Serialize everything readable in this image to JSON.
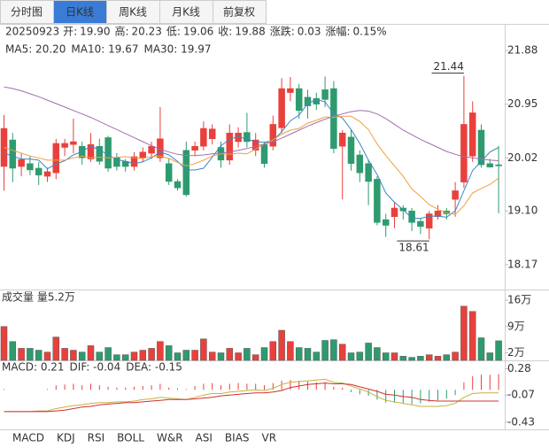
{
  "tabs": [
    "分时图",
    "日K线",
    "周K线",
    "月K线",
    "前复权"
  ],
  "active_tab": 1,
  "info": {
    "date": "20250923",
    "fields": [
      {
        "name": "开:",
        "value": 19.9,
        "label": "19.90",
        "color": "#e8413c"
      },
      {
        "name": "高:",
        "value": 20.23,
        "label": "20.23",
        "color": "#e8413c"
      },
      {
        "name": "低:",
        "value": 19.06,
        "label": "19.06",
        "color": "#2e9b6e"
      },
      {
        "name": "收:",
        "value": 19.88,
        "label": "19.88",
        "color": "#e8413c"
      },
      {
        "name": "涨跌:",
        "value": 0.03,
        "label": "0.03",
        "color": "#e8413c"
      },
      {
        "name": "涨幅:",
        "value": 0.15,
        "label": "0.15%",
        "color": "#e8413c"
      }
    ]
  },
  "chart_data": [
    {
      "type": "candlestick",
      "up_color": "#e8413c",
      "down_color": "#2e9b6e",
      "ylim": [
        18.03,
        22.11
      ],
      "yticks": [
        21.88,
        20.95,
        20.02,
        {
          "value": 19.1,
          "label": "19.10"
        },
        18.17
      ],
      "ohlc": [
        [
          19.87,
          20.76,
          19.45,
          20.53
        ],
        [
          20.33,
          20.45,
          19.6,
          19.84
        ],
        [
          19.87,
          20.1,
          19.7,
          19.99
        ],
        [
          19.92,
          20.05,
          19.72,
          19.81
        ],
        [
          19.84,
          19.95,
          19.55,
          19.72
        ],
        [
          19.7,
          19.85,
          19.6,
          19.78
        ],
        [
          19.76,
          20.35,
          19.65,
          20.27
        ],
        [
          20.2,
          20.35,
          20.05,
          20.27
        ],
        [
          20.25,
          20.7,
          20.1,
          20.3
        ],
        [
          20.22,
          20.3,
          19.9,
          20.02
        ],
        [
          20.0,
          20.45,
          19.95,
          20.25
        ],
        [
          20.22,
          20.35,
          19.9,
          19.96
        ],
        [
          20.37,
          20.4,
          19.78,
          19.84
        ],
        [
          20.02,
          20.1,
          19.8,
          19.87
        ],
        [
          19.96,
          20.0,
          19.78,
          19.87
        ],
        [
          19.87,
          20.12,
          19.8,
          20.04
        ],
        [
          20.02,
          20.2,
          19.95,
          20.12
        ],
        [
          20.1,
          20.3,
          20.0,
          20.22
        ],
        [
          20.02,
          20.9,
          19.95,
          20.35
        ],
        [
          19.92,
          20.0,
          19.55,
          19.61
        ],
        [
          19.61,
          19.65,
          19.45,
          19.5
        ],
        [
          20.15,
          20.3,
          19.35,
          19.38
        ],
        [
          20.15,
          20.3,
          20.05,
          20.22
        ],
        [
          20.22,
          20.65,
          20.15,
          20.53
        ],
        [
          20.35,
          20.6,
          20.25,
          20.52
        ],
        [
          20.2,
          20.3,
          19.85,
          19.98
        ],
        [
          19.98,
          20.6,
          19.9,
          20.45
        ],
        [
          20.3,
          20.55,
          20.2,
          20.45
        ],
        [
          20.46,
          20.8,
          20.2,
          20.3
        ],
        [
          20.15,
          20.45,
          20.05,
          20.33
        ],
        [
          20.25,
          20.3,
          19.85,
          19.92
        ],
        [
          20.22,
          20.75,
          20.15,
          20.6
        ],
        [
          20.54,
          21.4,
          20.45,
          21.22
        ],
        [
          21.15,
          21.42,
          21.0,
          21.22
        ],
        [
          21.22,
          21.3,
          20.7,
          20.84
        ],
        [
          21.07,
          21.2,
          20.7,
          20.92
        ],
        [
          21.05,
          21.15,
          20.85,
          20.95
        ],
        [
          21.2,
          21.43,
          20.9,
          21.03
        ],
        [
          21.22,
          21.35,
          20.1,
          20.18
        ],
        [
          20.22,
          20.5,
          19.3,
          20.45
        ],
        [
          20.38,
          20.5,
          19.8,
          19.92
        ],
        [
          20.07,
          20.15,
          19.6,
          19.76
        ],
        [
          19.92,
          19.98,
          19.2,
          19.61
        ],
        [
          19.65,
          19.7,
          18.85,
          18.9
        ],
        [
          18.95,
          19.05,
          18.65,
          18.85
        ],
        [
          19.0,
          19.25,
          18.8,
          19.15
        ],
        [
          19.15,
          19.2,
          18.95,
          19.1
        ],
        [
          19.1,
          19.15,
          18.75,
          18.9
        ],
        [
          18.92,
          18.98,
          18.7,
          18.83
        ],
        [
          18.8,
          19.1,
          18.61,
          19.05
        ],
        [
          19.0,
          19.2,
          18.95,
          19.1
        ],
        [
          19.1,
          19.15,
          18.95,
          19.05
        ],
        [
          19.3,
          19.6,
          19.0,
          19.45
        ],
        [
          19.6,
          21.44,
          19.5,
          20.6
        ],
        [
          20.05,
          21.0,
          19.95,
          20.8
        ],
        [
          20.5,
          20.6,
          19.85,
          19.9
        ],
        [
          19.92,
          20.0,
          19.85,
          19.86
        ],
        [
          19.9,
          20.23,
          19.06,
          19.88
        ]
      ],
      "series": [
        {
          "name": "MA5: 20.20",
          "color": "#3b86c4",
          "values": [
            20.1,
            20.05,
            20.0,
            20.0,
            19.98,
            19.83,
            19.91,
            19.97,
            20.07,
            20.13,
            20.22,
            20.16,
            20.07,
            19.99,
            19.96,
            19.92,
            19.95,
            20.02,
            20.12,
            20.07,
            19.96,
            19.81,
            19.81,
            19.84,
            20.03,
            20.23,
            20.34,
            20.39,
            20.34,
            20.3,
            20.29,
            20.32,
            20.47,
            20.66,
            20.76,
            20.96,
            21.03,
            20.99,
            20.78,
            20.71,
            20.51,
            20.27,
            19.98,
            19.73,
            19.41,
            19.25,
            19.12,
            18.98,
            18.97,
            19.01,
            19.01,
            18.99,
            19.1,
            19.45,
            19.8,
            19.96,
            20.12,
            20.2
          ]
        },
        {
          "name": "MA10: 19.67",
          "color": "#f0a040",
          "values": [
            20.2,
            20.15,
            20.1,
            20.05,
            20.02,
            19.98,
            19.98,
            19.98,
            20.02,
            20.05,
            20.02,
            20.03,
            20.02,
            20.03,
            20.04,
            20.02,
            20.01,
            20.04,
            20.05,
            20.01,
            19.94,
            19.88,
            19.92,
            19.98,
            20.05,
            20.09,
            20.08,
            20.1,
            20.09,
            20.17,
            20.26,
            20.33,
            20.43,
            20.5,
            20.53,
            20.62,
            20.67,
            20.73,
            20.72,
            20.74,
            20.74,
            20.65,
            20.51,
            20.26,
            20.06,
            19.88,
            19.7,
            19.48,
            19.35,
            19.21,
            19.13,
            19.07,
            19.04,
            19.19,
            19.41,
            19.49,
            19.56,
            19.67
          ]
        },
        {
          "name": "MA30: 19.97",
          "color": "#a070b0",
          "values": [
            21.25,
            21.22,
            21.18,
            21.13,
            21.08,
            21.02,
            20.96,
            20.9,
            20.84,
            20.78,
            20.72,
            20.65,
            20.58,
            20.51,
            20.44,
            20.37,
            20.3,
            20.23,
            20.17,
            20.12,
            20.08,
            20.06,
            20.06,
            20.07,
            20.09,
            20.1,
            20.12,
            20.15,
            20.18,
            20.22,
            20.26,
            20.3,
            20.36,
            20.43,
            20.5,
            20.57,
            20.63,
            20.69,
            20.74,
            20.78,
            20.82,
            20.84,
            20.83,
            20.78,
            20.7,
            20.6,
            20.5,
            20.42,
            20.34,
            20.27,
            20.2,
            20.13,
            20.08,
            20.04,
            20.02,
            20.0,
            19.98,
            19.97
          ]
        }
      ]
    },
    {
      "type": "bar",
      "title": "成交量 量5.2万",
      "ylim": [
        0,
        18.6
      ],
      "yticks": [
        {
          "value": 16,
          "label": "16万"
        },
        {
          "value": 9,
          "label": "9万"
        },
        {
          "value": 2,
          "label": "2万"
        }
      ],
      "values": [
        9,
        5,
        3.2,
        3.2,
        2.7,
        2.2,
        6.2,
        3.2,
        2.7,
        2.2,
        3.9,
        2.2,
        3.4,
        1.5,
        1.5,
        2.2,
        2.7,
        3.2,
        5,
        3.9,
        2,
        2.7,
        2.7,
        5.7,
        2.2,
        2,
        3.2,
        2,
        3.2,
        1.5,
        3.4,
        5,
        8,
        5,
        3.4,
        3.2,
        2.2,
        5.3,
        5.5,
        4.3,
        2,
        2.2,
        4.6,
        3.4,
        2,
        2,
        1.1,
        0.8,
        1.1,
        1.5,
        1.1,
        1.5,
        2.2,
        14.4,
        13,
        6,
        2,
        5.2
      ]
    },
    {
      "type": "macd",
      "title": "MACD: 0.21",
      "up_color": "#e8413c",
      "down_color": "#2e9b6e",
      "ylim": [
        -0.55,
        0.38
      ],
      "yticks": [
        0.28,
        -0.07,
        -0.43
      ],
      "histogram": [
        0.01,
        0,
        0,
        0,
        0,
        0.01,
        0.06,
        0.07,
        0.08,
        0.06,
        0.08,
        0.06,
        0.04,
        0.03,
        0.03,
        0.04,
        0.05,
        0.06,
        0.08,
        0.03,
        0.02,
        0.01,
        0.05,
        0.08,
        0.09,
        0.06,
        0.08,
        0.09,
        0.08,
        0.08,
        0.06,
        0.09,
        0.12,
        0.13,
        0.12,
        0.11,
        0.1,
        0.1,
        0.04,
        0.03,
        -0.03,
        -0.06,
        -0.08,
        -0.13,
        -0.17,
        -0.17,
        -0.18,
        -0.19,
        -0.18,
        -0.16,
        -0.14,
        -0.12,
        -0.07,
        0.1,
        0.18,
        0.2,
        0.2,
        0.21
      ],
      "series": [
        {
          "name": "DIF: -0.04",
          "color": "#c8b040",
          "values": [
            -0.29,
            -0.29,
            -0.29,
            -0.29,
            -0.28,
            -0.28,
            -0.25,
            -0.23,
            -0.21,
            -0.2,
            -0.18,
            -0.17,
            -0.17,
            -0.16,
            -0.16,
            -0.15,
            -0.13,
            -0.12,
            -0.1,
            -0.11,
            -0.12,
            -0.13,
            -0.1,
            -0.07,
            -0.05,
            -0.05,
            -0.03,
            -0.02,
            -0.01,
            0,
            -0.01,
            0.02,
            0.07,
            0.1,
            0.11,
            0.12,
            0.13,
            0.14,
            0.1,
            0.09,
            0.05,
            0.01,
            -0.03,
            -0.09,
            -0.14,
            -0.16,
            -0.18,
            -0.2,
            -0.22,
            -0.22,
            -0.22,
            -0.21,
            -0.18,
            -0.1,
            -0.05,
            -0.04,
            -0.04,
            -0.04
          ]
        },
        {
          "name": "DEA: -0.15",
          "color": "#d03030",
          "values": [
            -0.29,
            -0.29,
            -0.29,
            -0.29,
            -0.29,
            -0.29,
            -0.28,
            -0.27,
            -0.25,
            -0.23,
            -0.22,
            -0.2,
            -0.19,
            -0.18,
            -0.17,
            -0.17,
            -0.16,
            -0.15,
            -0.14,
            -0.13,
            -0.13,
            -0.13,
            -0.12,
            -0.11,
            -0.1,
            -0.08,
            -0.07,
            -0.06,
            -0.05,
            -0.04,
            -0.04,
            -0.03,
            -0.01,
            0.03,
            0.05,
            0.07,
            0.08,
            0.09,
            0.08,
            0.08,
            0.07,
            0.04,
            0.01,
            -0.02,
            -0.06,
            -0.07,
            -0.09,
            -0.1,
            -0.13,
            -0.14,
            -0.15,
            -0.15,
            -0.15,
            -0.15,
            -0.15,
            -0.15,
            -0.15,
            -0.15
          ]
        }
      ]
    }
  ],
  "indicator_tabs": [
    "MACD",
    "KDJ",
    "RSI",
    "BOLL",
    "W&R",
    "ASI",
    "BIAS",
    "VR"
  ],
  "active_indicator": 0
}
